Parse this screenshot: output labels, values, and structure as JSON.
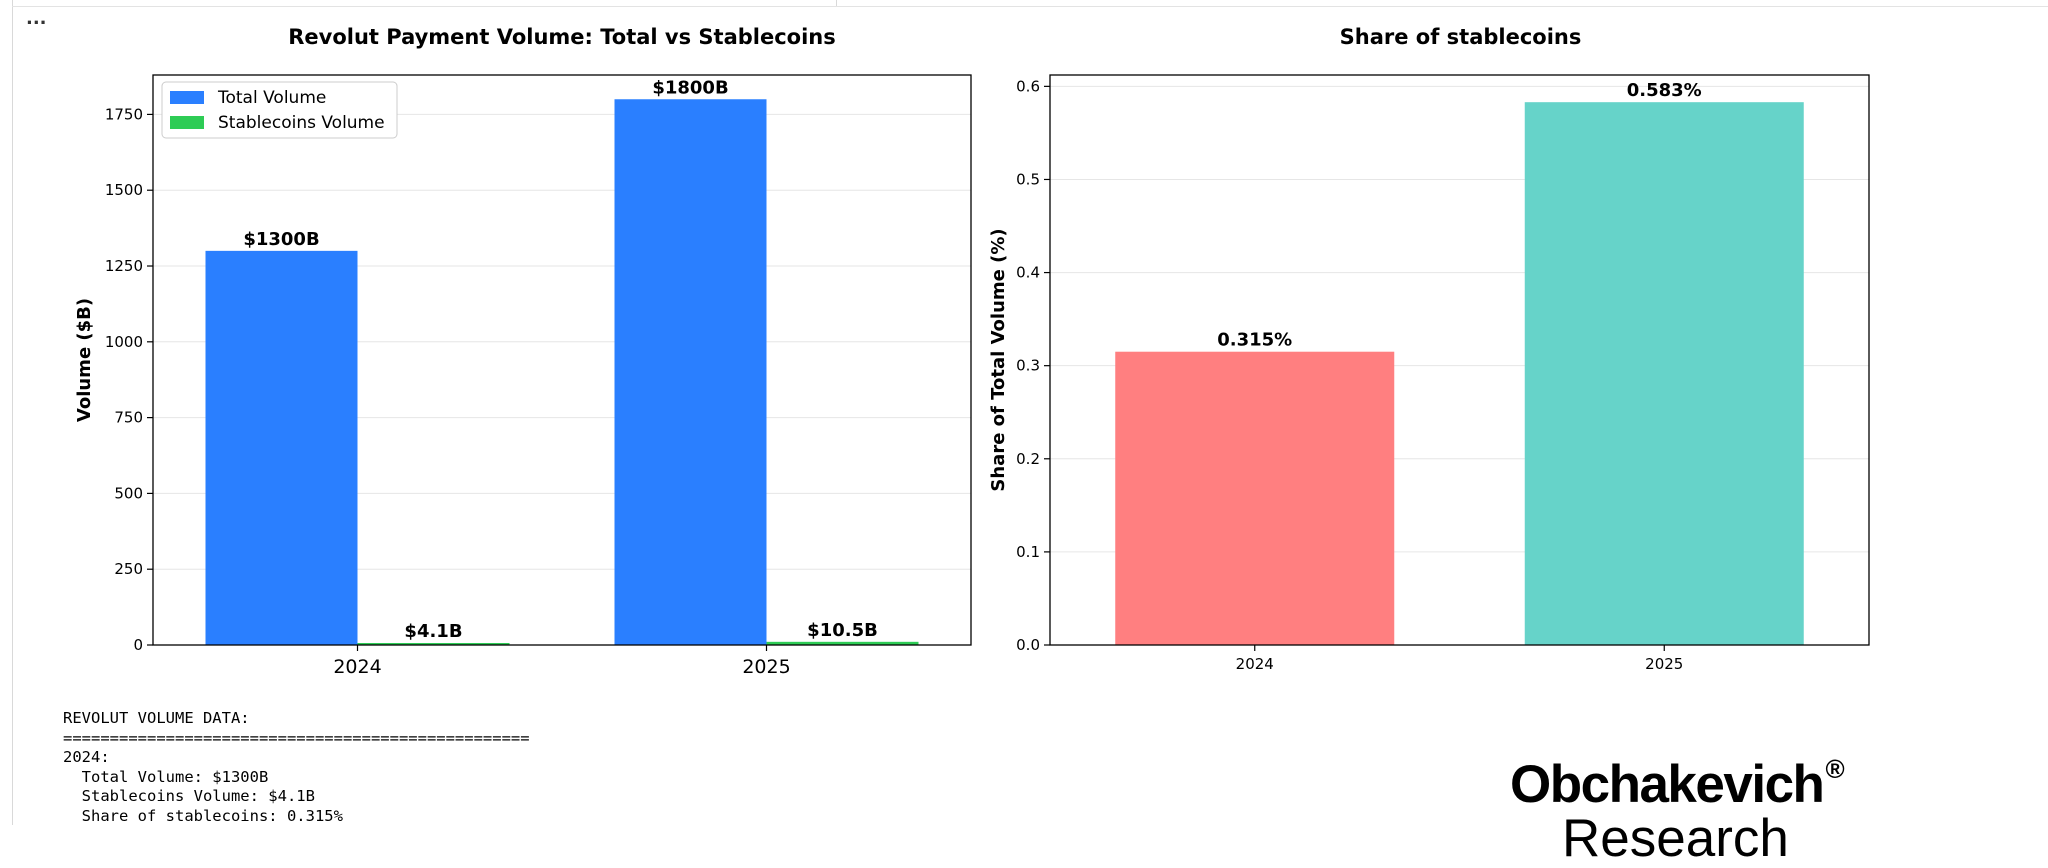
{
  "cell": {
    "menu_label": "..."
  },
  "chart_data": [
    {
      "type": "bar",
      "title": "Revolut Payment Volume: Total vs Stablecoins",
      "xlabel": "",
      "ylabel": "Volume ($B)",
      "categories": [
        "2024",
        "2025"
      ],
      "ylim": [
        0,
        1880
      ],
      "yticks": [
        0,
        250,
        500,
        750,
        1000,
        1250,
        1500,
        1750
      ],
      "grid": true,
      "legend_position": "top-left",
      "series": [
        {
          "name": "Total Volume",
          "color": "#2a7fff",
          "values": [
            1300,
            1800
          ],
          "labels": [
            "$1300B",
            "$1800B"
          ]
        },
        {
          "name": "Stablecoins Volume",
          "color": "#2ecc55",
          "values": [
            4.1,
            10.5
          ],
          "labels": [
            "$4.1B",
            "$10.5B"
          ]
        }
      ]
    },
    {
      "type": "bar",
      "title": "Share of stablecoins",
      "xlabel": "",
      "ylabel": "Share of Total Volume (%)",
      "categories": [
        "2024",
        "2025"
      ],
      "ylim": [
        0,
        0.6122
      ],
      "yticks": [
        0.0,
        0.1,
        0.2,
        0.3,
        0.4,
        0.5,
        0.6
      ],
      "grid": true,
      "series": [
        {
          "values": [
            0.315,
            0.583
          ],
          "colors": [
            "#ff7f80",
            "#66d3c9"
          ],
          "labels": [
            "0.315%",
            "0.583%"
          ]
        }
      ]
    }
  ],
  "console": {
    "lines": [
      "REVOLUT VOLUME DATA:",
      "==================================================",
      "2024:",
      "  Total Volume: $1300B",
      "  Stablecoins Volume: $4.1B",
      "  Share of stablecoins: 0.315%"
    ]
  },
  "brand": {
    "name": "Obchakevich",
    "mark": "®",
    "sub": "Research"
  }
}
